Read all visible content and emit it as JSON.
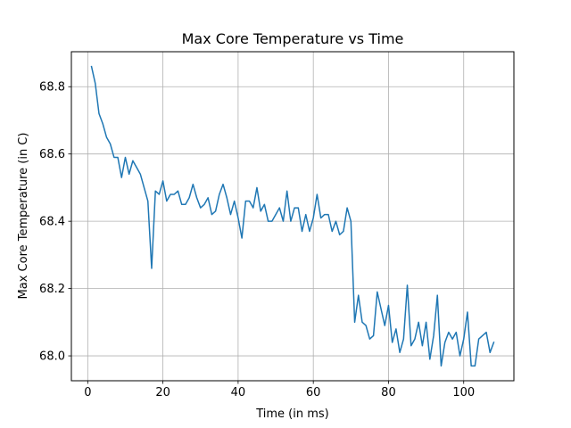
{
  "chart_data": {
    "type": "line",
    "title": "Max Core Temperature vs Time",
    "xlabel": "Time (in ms)",
    "ylabel": "Max Core Temperature (in C)",
    "xlim": [
      -4.35,
      113.35
    ],
    "ylim": [
      67.926,
      68.904
    ],
    "xticks": [
      0,
      20,
      40,
      60,
      80,
      100
    ],
    "yticks": [
      68.0,
      68.2,
      68.4,
      68.6,
      68.8
    ],
    "xtick_labels": [
      "0",
      "20",
      "40",
      "60",
      "80",
      "100"
    ],
    "ytick_labels": [
      "68.0",
      "68.2",
      "68.4",
      "68.6",
      "68.8"
    ],
    "grid": true,
    "line_color": "#1f77b4",
    "series": [
      {
        "x": [
          1,
          2,
          3,
          4,
          5,
          6,
          7,
          8,
          9,
          10,
          11,
          12,
          13,
          14,
          15,
          16,
          17,
          18,
          19,
          20,
          21,
          22,
          23,
          24,
          25,
          26,
          27,
          28,
          29,
          30,
          31,
          32,
          33,
          34,
          35,
          36,
          37,
          38,
          39,
          40,
          41,
          42,
          43,
          44,
          45,
          46,
          47,
          48,
          49,
          50,
          51,
          52,
          53,
          54,
          55,
          56,
          57,
          58,
          59,
          60,
          61,
          62,
          63,
          64,
          65,
          66,
          67,
          68,
          69,
          70,
          71,
          72,
          73,
          74,
          75,
          76,
          77,
          78,
          79,
          80,
          81,
          82,
          83,
          84,
          85,
          86,
          87,
          88,
          89,
          90,
          91,
          92,
          93,
          94,
          95,
          96,
          97,
          98,
          99,
          100,
          101,
          102,
          103,
          104,
          105,
          106,
          107,
          108
        ],
        "values": [
          68.86,
          68.81,
          68.72,
          68.69,
          68.65,
          68.63,
          68.59,
          68.59,
          68.53,
          68.59,
          68.54,
          68.58,
          68.56,
          68.54,
          68.5,
          68.46,
          68.26,
          68.49,
          68.48,
          68.52,
          68.46,
          68.48,
          68.48,
          68.49,
          68.45,
          68.45,
          68.47,
          68.51,
          68.47,
          68.44,
          68.45,
          68.47,
          68.42,
          68.43,
          68.48,
          68.51,
          68.47,
          68.42,
          68.46,
          68.41,
          68.35,
          68.46,
          68.46,
          68.44,
          68.5,
          68.43,
          68.45,
          68.4,
          68.4,
          68.42,
          68.44,
          68.4,
          68.49,
          68.4,
          68.44,
          68.44,
          68.37,
          68.42,
          68.37,
          68.41,
          68.48,
          68.41,
          68.42,
          68.42,
          68.37,
          68.4,
          68.36,
          68.37,
          68.44,
          68.4,
          68.1,
          68.18,
          68.1,
          68.09,
          68.05,
          68.06,
          68.19,
          68.14,
          68.09,
          68.15,
          68.04,
          68.08,
          68.01,
          68.05,
          68.21,
          68.03,
          68.05,
          68.1,
          68.03,
          68.1,
          67.99,
          68.06,
          68.18,
          67.97,
          68.04,
          68.07,
          68.05,
          68.07,
          68.0,
          68.05,
          68.13,
          67.97,
          67.97,
          68.05,
          68.06,
          68.07,
          68.01,
          68.04
        ]
      }
    ]
  }
}
